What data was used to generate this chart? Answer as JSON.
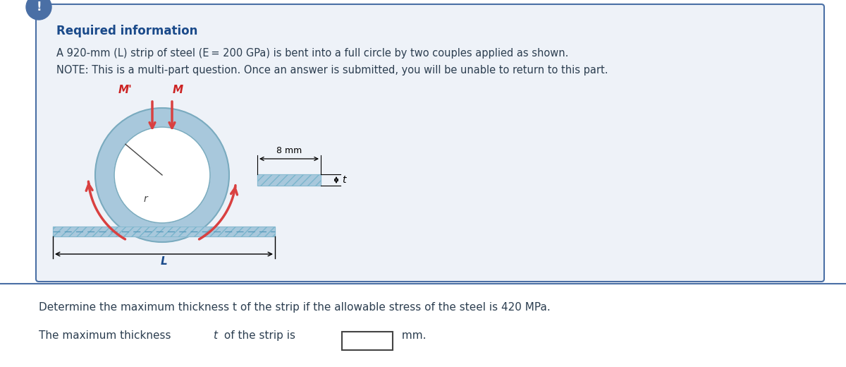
{
  "bg_color": "#ffffff",
  "box_bg": "#eef2f8",
  "box_border": "#4a6fa5",
  "title_text": "Required information",
  "title_color": "#1a4a8a",
  "line1": "A 920-mm (L) strip of steel (E = 200 GPa) is bent into a full circle by two couples applied as shown.",
  "line2": "NOTE: This is a multi-part question. Once an answer is submitted, you will be unable to return to this part.",
  "bottom_line1": "Determine the maximum thickness t of the strip if the allowable stress of the steel is 420 MPa.",
  "text_color": "#2c3e50",
  "ring_color": "#a8c8dc",
  "ring_white": "#ffffff",
  "strip_color": "#a8c8dc",
  "arrow_color": "#d94040",
  "label_color_M": "#cc2222",
  "separator_color": "#4a6fa5",
  "icon_bg": "#4a6fa5"
}
